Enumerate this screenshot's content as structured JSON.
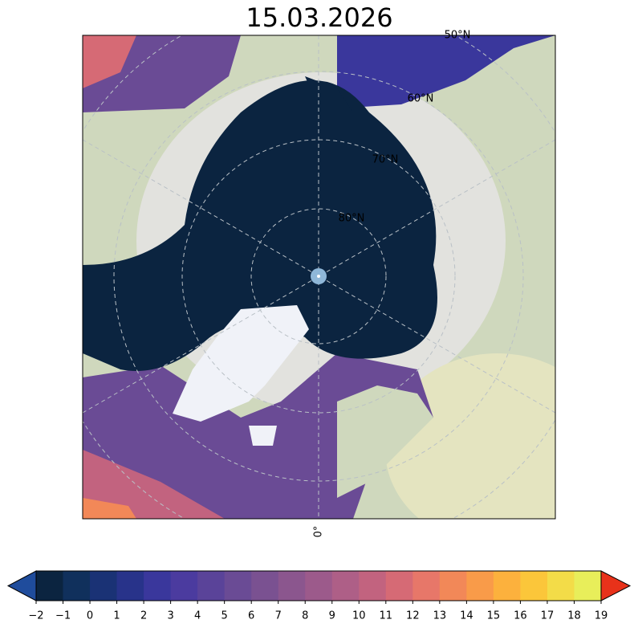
{
  "title": "15.03.2026",
  "map": {
    "parallel_labels": [
      "80°N",
      "70°N",
      "60°N",
      "50°N"
    ],
    "meridian_label": "0°"
  },
  "colorbar": {
    "ticks": [
      {
        "value": -2,
        "label": "−2"
      },
      {
        "value": -1,
        "label": "−1"
      },
      0,
      1,
      2,
      3,
      4,
      5,
      6,
      7,
      8,
      9,
      10,
      11,
      12,
      13,
      14,
      15,
      16,
      17,
      18,
      19
    ],
    "colors": [
      "#0b2440",
      "#10305c",
      "#1a3275",
      "#28338a",
      "#3a379c",
      "#4b3b9f",
      "#5a4399",
      "#6a4b95",
      "#7a5191",
      "#8b568e",
      "#9c5a8b",
      "#ae5f87",
      "#c2637f",
      "#d66a75",
      "#e77769",
      "#f28858",
      "#f99b49",
      "#fcb13d",
      "#fbc63a",
      "#f3dc48",
      "#e8ee5a"
    ],
    "under_color": "#1f4c9c",
    "over_color": "#e8321a"
  }
}
